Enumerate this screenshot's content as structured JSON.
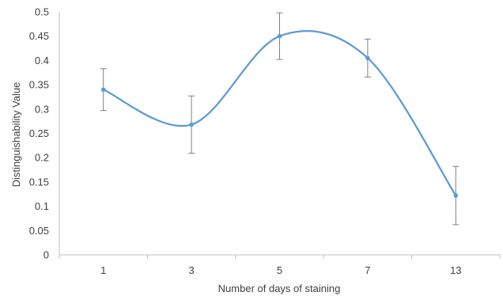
{
  "chart_data": {
    "type": "line",
    "smooth": true,
    "categories": [
      "1",
      "3",
      "5",
      "7",
      "13"
    ],
    "series": [
      {
        "values": [
          0.34,
          0.268,
          0.45,
          0.405,
          0.122
        ],
        "error": [
          0.043,
          0.059,
          0.048,
          0.039,
          0.06
        ],
        "color": "#5B9BD5"
      }
    ],
    "xlabel": "Number of days of staining",
    "ylabel": "Distinguishability Value",
    "ylim": [
      0,
      0.5
    ],
    "yticks": [
      "0",
      "0.05",
      "0.1",
      "0.15",
      "0.2",
      "0.25",
      "0.3",
      "0.35",
      "0.4",
      "0.45",
      "0.5"
    ],
    "grid": false,
    "legend": "none"
  }
}
